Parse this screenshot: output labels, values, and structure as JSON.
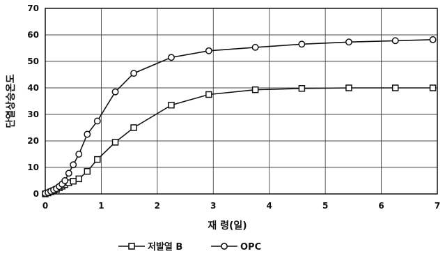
{
  "chart_data": {
    "type": "line",
    "title": "",
    "xlabel": "재   령(일)",
    "ylabel": "단열상승온도",
    "xlim": [
      0,
      7
    ],
    "ylim": [
      0,
      70
    ],
    "xticks": [
      "0",
      "1",
      "2",
      "3",
      "4",
      "5",
      "6",
      "7"
    ],
    "yticks": [
      "0",
      "10",
      "20",
      "30",
      "40",
      "50",
      "60",
      "70"
    ],
    "grid": true,
    "legend_position": "bottom",
    "series": [
      {
        "name": "저발열 B",
        "marker": "square",
        "color": "#111111",
        "points": [
          [
            0,
            0
          ],
          [
            0.05,
            0.4
          ],
          [
            0.1,
            0.8
          ],
          [
            0.15,
            1.2
          ],
          [
            0.2,
            1.7
          ],
          [
            0.25,
            2.3
          ],
          [
            0.3,
            2.9
          ],
          [
            0.35,
            3.5
          ],
          [
            0.42,
            4.2
          ],
          [
            0.5,
            4.8
          ],
          [
            0.6,
            5.7
          ],
          [
            0.75,
            8.5
          ],
          [
            0.93,
            13
          ],
          [
            1.25,
            19.5
          ],
          [
            1.58,
            25
          ],
          [
            2.25,
            33.5
          ],
          [
            2.92,
            37.5
          ],
          [
            3.75,
            39.3
          ],
          [
            4.58,
            39.8
          ],
          [
            5.42,
            40
          ],
          [
            6.25,
            40
          ],
          [
            6.92,
            40
          ]
        ]
      },
      {
        "name": "OPC",
        "marker": "circle",
        "color": "#111111",
        "points": [
          [
            0,
            0.2
          ],
          [
            0.05,
            0.5
          ],
          [
            0.1,
            1
          ],
          [
            0.15,
            1.5
          ],
          [
            0.2,
            2
          ],
          [
            0.25,
            2.8
          ],
          [
            0.3,
            3.7
          ],
          [
            0.35,
            5
          ],
          [
            0.42,
            7.8
          ],
          [
            0.5,
            11
          ],
          [
            0.6,
            15
          ],
          [
            0.75,
            22.5
          ],
          [
            0.93,
            27.5
          ],
          [
            1.25,
            38.5
          ],
          [
            1.58,
            45.5
          ],
          [
            2.25,
            51.5
          ],
          [
            2.92,
            54
          ],
          [
            3.75,
            55.3
          ],
          [
            4.58,
            56.5
          ],
          [
            5.42,
            57.3
          ],
          [
            6.25,
            57.8
          ],
          [
            6.92,
            58.2
          ]
        ]
      }
    ]
  }
}
